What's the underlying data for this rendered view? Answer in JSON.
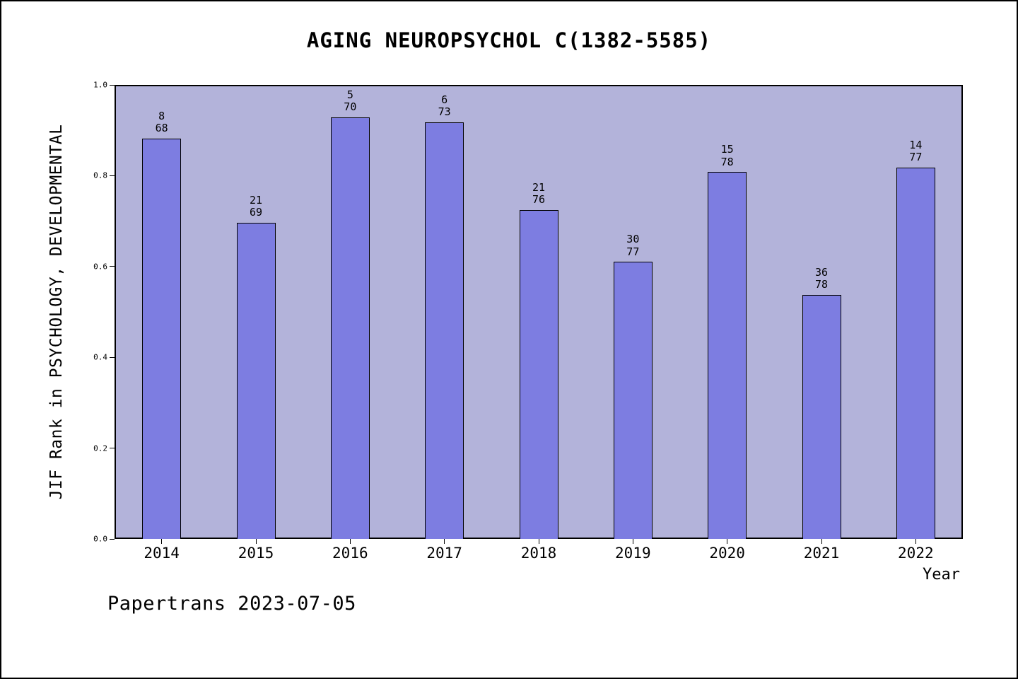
{
  "title": "AGING NEUROPSYCHOL C(1382-5585)",
  "footer": "Papertrans 2023-07-05",
  "chart_data": {
    "type": "bar",
    "title": "AGING NEUROPSYCHOL C(1382-5585)",
    "xlabel": "Year",
    "ylabel": "JIF Rank in PSYCHOLOGY, DEVELOPMENTAL",
    "ylim": [
      0.0,
      1.0
    ],
    "ytick_labels": [
      "0.0",
      "0.2",
      "0.4",
      "0.6",
      "0.8",
      "1.0"
    ],
    "grid": false,
    "legend": null,
    "categories": [
      "2014",
      "2015",
      "2016",
      "2017",
      "2018",
      "2019",
      "2020",
      "2021",
      "2022"
    ],
    "values": [
      0.882,
      0.696,
      0.929,
      0.918,
      0.724,
      0.61,
      0.808,
      0.538,
      0.818
    ],
    "bar_annotations": [
      {
        "rank": "8",
        "total": "68"
      },
      {
        "rank": "21",
        "total": "69"
      },
      {
        "rank": "5",
        "total": "70"
      },
      {
        "rank": "6",
        "total": "73"
      },
      {
        "rank": "21",
        "total": "76"
      },
      {
        "rank": "30",
        "total": "77"
      },
      {
        "rank": "15",
        "total": "78"
      },
      {
        "rank": "36",
        "total": "78"
      },
      {
        "rank": "14",
        "total": "77"
      }
    ],
    "colors": {
      "plot_background": "#b3b3da",
      "bar_fill": "#7d7de1",
      "bar_edge": "#000000",
      "text": "#000000",
      "outer_background": "#ffffff"
    }
  }
}
